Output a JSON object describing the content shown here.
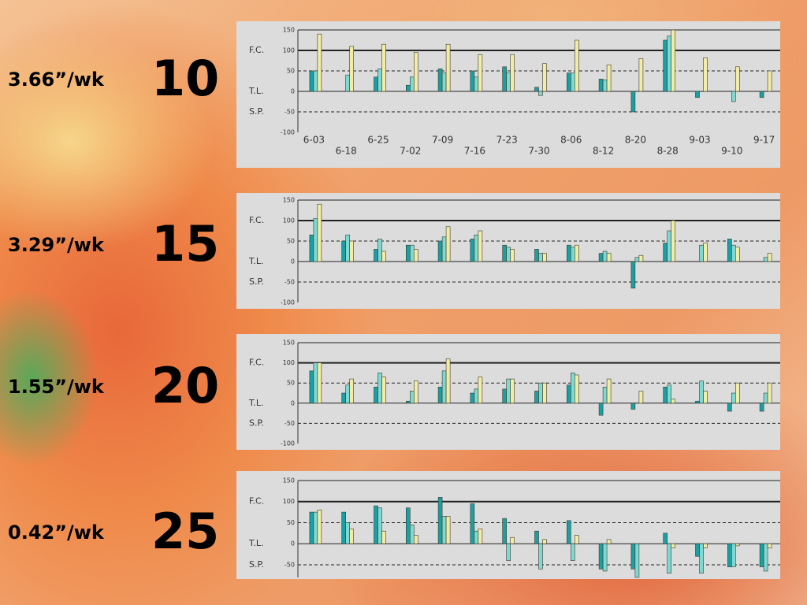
{
  "chart_data": [
    {
      "type": "bar",
      "rate": "3.66”/wk",
      "label": "10",
      "categories": [
        "6-03",
        "6-18",
        "6-25",
        "7-02",
        "7-09",
        "7-16",
        "7-23",
        "7-30",
        "8-06",
        "8-12",
        "8-20",
        "8-28",
        "9-03",
        "9-10",
        "9-17"
      ],
      "series": [
        {
          "color": "#1aa0a4",
          "values": [
            50,
            0,
            35,
            15,
            55,
            50,
            60,
            10,
            45,
            30,
            -50,
            125,
            -15,
            0,
            -15
          ]
        },
        {
          "color": "#7fd8d2",
          "values": [
            50,
            40,
            55,
            35,
            45,
            35,
            45,
            -10,
            45,
            28,
            0,
            135,
            0,
            -25,
            0
          ]
        },
        {
          "color": "#f2eca6",
          "values": [
            140,
            110,
            115,
            95,
            115,
            90,
            90,
            68,
            125,
            65,
            80,
            150,
            82,
            60,
            50
          ]
        }
      ],
      "ylim": [
        -100,
        150
      ],
      "yticks": [
        -100,
        -50,
        0,
        50,
        100,
        150
      ],
      "level_labels": [
        {
          "value": 100,
          "label": "F.C."
        },
        {
          "value": 0,
          "label": "T.L."
        },
        {
          "value": -50,
          "label": "S.P."
        }
      ],
      "bold_line": 100,
      "dashed_lines": [
        50,
        -50
      ]
    },
    {
      "type": "bar",
      "rate": "3.29”/wk",
      "label": "15",
      "categories": [
        null,
        null,
        null,
        null,
        null,
        null,
        null,
        null,
        null,
        null,
        null,
        null,
        null,
        null,
        null
      ],
      "series": [
        {
          "color": "#1aa0a4",
          "values": [
            65,
            50,
            30,
            40,
            50,
            55,
            40,
            30,
            40,
            20,
            -65,
            45,
            0,
            55,
            0
          ]
        },
        {
          "color": "#7fd8d2",
          "values": [
            105,
            65,
            55,
            40,
            60,
            65,
            35,
            20,
            35,
            25,
            10,
            75,
            40,
            40,
            10
          ]
        },
        {
          "color": "#f2eca6",
          "values": [
            140,
            50,
            25,
            30,
            85,
            75,
            30,
            20,
            40,
            20,
            15,
            100,
            45,
            35,
            20
          ]
        }
      ],
      "ylim": [
        -100,
        150
      ],
      "yticks": [
        -100,
        -50,
        0,
        50,
        100,
        150
      ],
      "level_labels": [
        {
          "value": 100,
          "label": "F.C."
        },
        {
          "value": 0,
          "label": "T.L."
        },
        {
          "value": -50,
          "label": "S.P."
        }
      ],
      "bold_line": 100,
      "dashed_lines": [
        50,
        -50
      ]
    },
    {
      "type": "bar",
      "rate": "1.55”/wk",
      "label": "20",
      "categories": [
        null,
        null,
        null,
        null,
        null,
        null,
        null,
        null,
        null,
        null,
        null,
        null,
        null,
        null,
        null
      ],
      "series": [
        {
          "color": "#1aa0a4",
          "values": [
            80,
            25,
            40,
            5,
            40,
            25,
            35,
            30,
            45,
            -30,
            -15,
            40,
            5,
            -20,
            -20
          ]
        },
        {
          "color": "#7fd8d2",
          "values": [
            100,
            45,
            75,
            30,
            80,
            35,
            60,
            50,
            75,
            40,
            0,
            45,
            55,
            25,
            25
          ]
        },
        {
          "color": "#f2eca6",
          "values": [
            100,
            60,
            65,
            55,
            110,
            65,
            60,
            50,
            70,
            60,
            30,
            10,
            30,
            50,
            50
          ]
        }
      ],
      "ylim": [
        -100,
        150
      ],
      "yticks": [
        -100,
        -50,
        0,
        50,
        100,
        150
      ],
      "level_labels": [
        {
          "value": 100,
          "label": "F.C."
        },
        {
          "value": 0,
          "label": "T.L."
        },
        {
          "value": -50,
          "label": "S.P."
        }
      ],
      "bold_line": 100,
      "dashed_lines": [
        50,
        -50
      ]
    },
    {
      "type": "bar",
      "rate": "0.42”/wk",
      "label": "25",
      "categories": [
        null,
        null,
        null,
        null,
        null,
        null,
        null,
        null,
        null,
        null,
        null,
        null,
        null,
        null,
        null
      ],
      "series": [
        {
          "color": "#1aa0a4",
          "values": [
            75,
            75,
            90,
            85,
            110,
            95,
            60,
            30,
            55,
            -60,
            -60,
            25,
            -30,
            -55,
            -55
          ]
        },
        {
          "color": "#7fd8d2",
          "values": [
            75,
            50,
            85,
            45,
            65,
            30,
            -40,
            -60,
            -40,
            -65,
            -80,
            -70,
            -70,
            -55,
            -65
          ]
        },
        {
          "color": "#f2eca6",
          "values": [
            80,
            35,
            30,
            20,
            65,
            35,
            15,
            10,
            20,
            10,
            0,
            -10,
            -10,
            -5,
            -10
          ]
        }
      ],
      "ylim": [
        -80,
        150
      ],
      "yticks": [
        -50,
        0,
        50,
        100,
        150
      ],
      "level_labels": [
        {
          "value": 100,
          "label": "F.C."
        },
        {
          "value": 0,
          "label": "T.L."
        },
        {
          "value": -50,
          "label": "S.P."
        }
      ],
      "bold_line": 100,
      "dashed_lines": [
        50,
        -50
      ]
    }
  ]
}
